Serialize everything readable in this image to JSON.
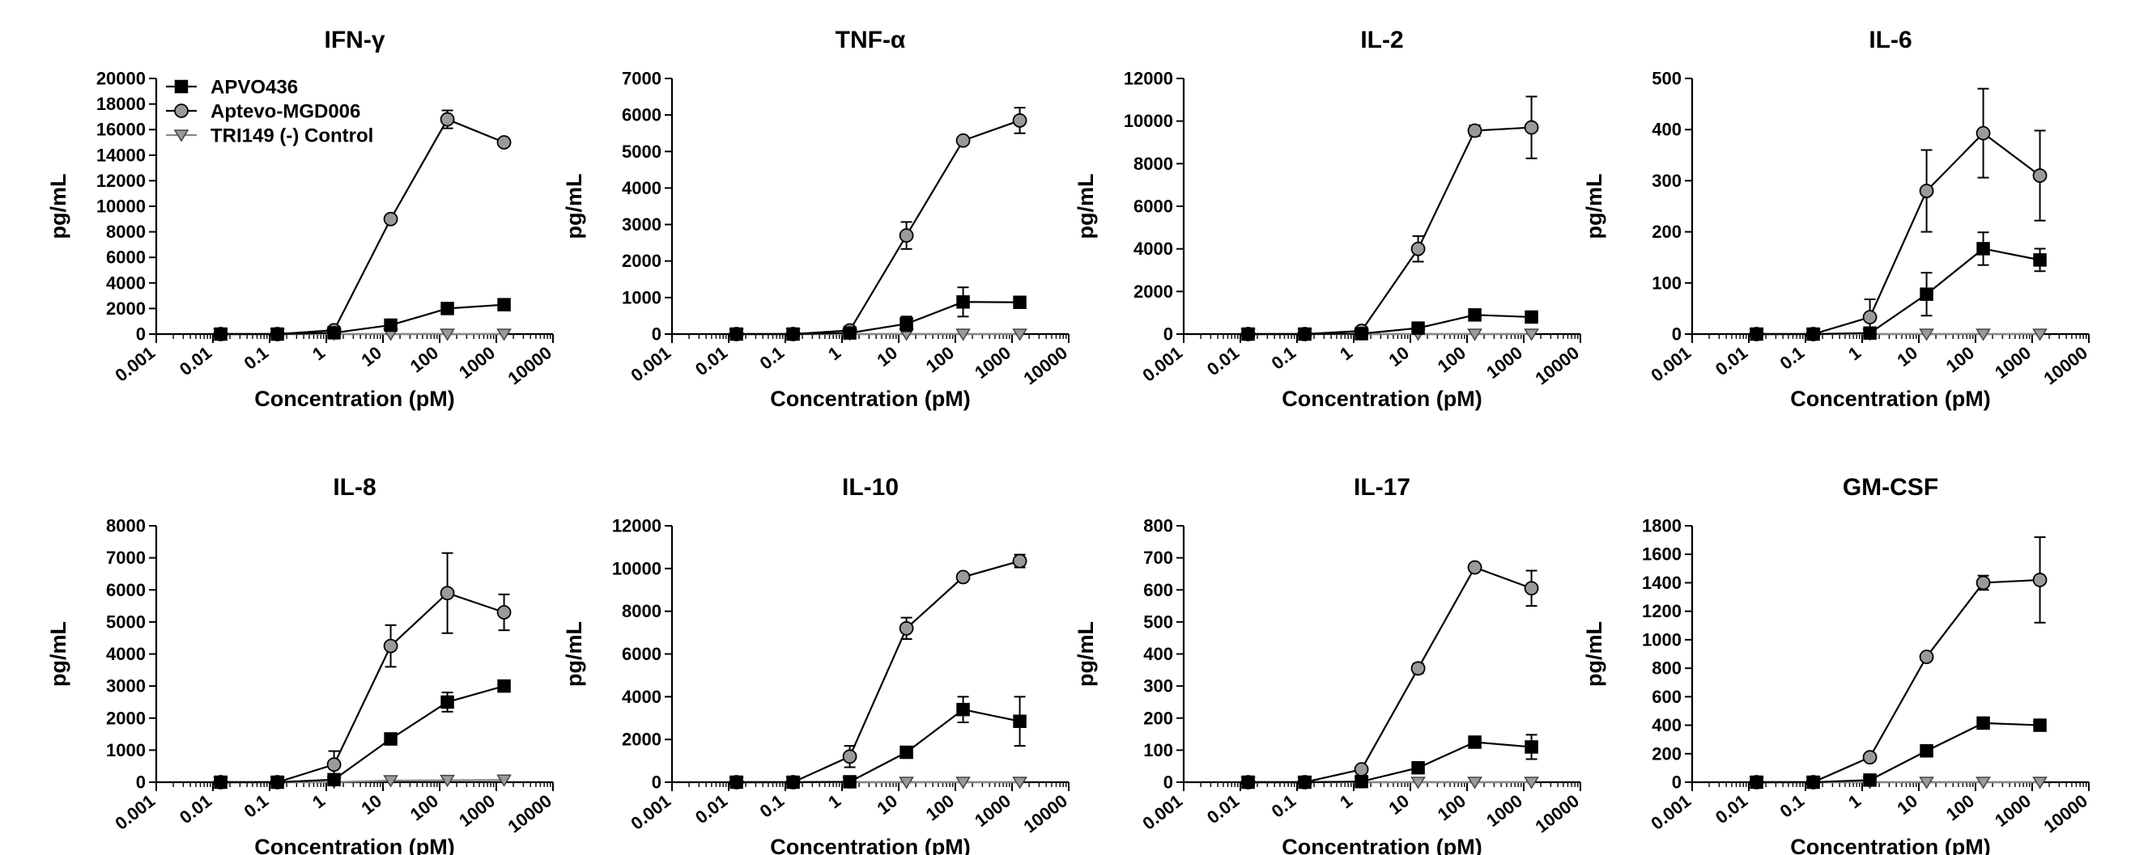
{
  "figure": {
    "legend_placement": "top-left of first panel"
  },
  "chart_data": [
    {
      "type": "line",
      "title": "IFN-γ",
      "xlabel": "Concentration (pM)",
      "ylabel": "pg/mL",
      "x_scale": "log",
      "xlim": [
        0.001,
        10000
      ],
      "x_ticks": [
        "0.001",
        "0.01",
        "0.1",
        "1",
        "10",
        "100",
        "1000",
        "10000"
      ],
      "ylim": [
        0,
        20000
      ],
      "y_ticks": [
        0,
        2000,
        4000,
        6000,
        8000,
        10000,
        12000,
        14000,
        16000,
        18000,
        20000
      ],
      "series": [
        {
          "name": "APVO436",
          "marker": "square",
          "color": "#000000",
          "x": [
            0.0137,
            0.137,
            1.37,
            13.7,
            137,
            1370
          ],
          "y": [
            0,
            0,
            100,
            700,
            2000,
            2300
          ],
          "err": [
            0,
            0,
            0,
            100,
            150,
            120
          ]
        },
        {
          "name": "Aptevo-MGD006",
          "marker": "circle",
          "color": "#9a9a9a",
          "x": [
            0.0137,
            0.137,
            1.37,
            13.7,
            137,
            1370
          ],
          "y": [
            0,
            0,
            300,
            9000,
            16800,
            15000
          ],
          "err": [
            0,
            0,
            0,
            0,
            700,
            0
          ]
        },
        {
          "name": "TRI149 (-) Control",
          "marker": "triangle-down",
          "color": "#9a9a9a",
          "x": [
            0.0137,
            0.137,
            1.37,
            13.7,
            137,
            1370
          ],
          "y": [
            0,
            0,
            0,
            0,
            0,
            0
          ],
          "err": [
            0,
            0,
            0,
            0,
            0,
            0
          ]
        }
      ]
    },
    {
      "type": "line",
      "title": "TNF-α",
      "xlabel": "Concentration (pM)",
      "ylabel": "pg/mL",
      "x_scale": "log",
      "xlim": [
        0.001,
        10000
      ],
      "x_ticks": [
        "0.001",
        "0.01",
        "0.1",
        "1",
        "10",
        "100",
        "1000",
        "10000"
      ],
      "ylim": [
        0,
        7000
      ],
      "y_ticks": [
        0,
        1000,
        2000,
        3000,
        4000,
        5000,
        6000,
        7000
      ],
      "series": [
        {
          "name": "APVO436",
          "marker": "square",
          "color": "#000000",
          "x": [
            0.0137,
            0.137,
            1.37,
            13.7,
            137,
            1370
          ],
          "y": [
            0,
            0,
            30,
            280,
            880,
            870
          ],
          "err": [
            0,
            0,
            0,
            200,
            400,
            0
          ]
        },
        {
          "name": "Aptevo-MGD006",
          "marker": "circle",
          "color": "#9a9a9a",
          "x": [
            0.0137,
            0.137,
            1.37,
            13.7,
            137,
            1370
          ],
          "y": [
            0,
            0,
            100,
            2700,
            5300,
            5850
          ],
          "err": [
            0,
            0,
            0,
            370,
            0,
            350
          ]
        },
        {
          "name": "TRI149 (-) Control",
          "marker": "triangle-down",
          "color": "#9a9a9a",
          "x": [
            0.0137,
            0.137,
            1.37,
            13.7,
            137,
            1370
          ],
          "y": [
            0,
            0,
            0,
            0,
            0,
            0
          ],
          "err": [
            0,
            0,
            0,
            0,
            0,
            0
          ]
        }
      ]
    },
    {
      "type": "line",
      "title": "IL-2",
      "xlabel": "Concentration (pM)",
      "ylabel": "pg/mL",
      "x_scale": "log",
      "xlim": [
        0.001,
        10000
      ],
      "x_ticks": [
        "0.001",
        "0.01",
        "0.1",
        "1",
        "10",
        "100",
        "1000",
        "10000"
      ],
      "ylim": [
        0,
        12000
      ],
      "y_ticks": [
        0,
        2000,
        4000,
        6000,
        8000,
        10000,
        12000
      ],
      "series": [
        {
          "name": "APVO436",
          "marker": "square",
          "color": "#000000",
          "x": [
            0.0137,
            0.137,
            1.37,
            13.7,
            137,
            1370
          ],
          "y": [
            0,
            0,
            20,
            280,
            900,
            800
          ],
          "err": [
            0,
            0,
            0,
            0,
            0,
            0
          ]
        },
        {
          "name": "Aptevo-MGD006",
          "marker": "circle",
          "color": "#9a9a9a",
          "x": [
            0.0137,
            0.137,
            1.37,
            13.7,
            137,
            1370
          ],
          "y": [
            0,
            0,
            150,
            4000,
            9550,
            9700
          ],
          "err": [
            0,
            0,
            0,
            600,
            250,
            1450
          ]
        },
        {
          "name": "TRI149 (-) Control",
          "marker": "triangle-down",
          "color": "#9a9a9a",
          "x": [
            0.0137,
            0.137,
            1.37,
            13.7,
            137,
            1370
          ],
          "y": [
            0,
            0,
            0,
            0,
            0,
            0
          ],
          "err": [
            0,
            0,
            0,
            0,
            0,
            0
          ]
        }
      ]
    },
    {
      "type": "line",
      "title": "IL-6",
      "xlabel": "Concentration (pM)",
      "ylabel": "pg/mL",
      "x_scale": "log",
      "xlim": [
        0.001,
        10000
      ],
      "x_ticks": [
        "0.001",
        "0.01",
        "0.1",
        "1",
        "10",
        "100",
        "1000",
        "10000"
      ],
      "ylim": [
        0,
        500
      ],
      "y_ticks": [
        0,
        100,
        200,
        300,
        400,
        500
      ],
      "series": [
        {
          "name": "APVO436",
          "marker": "square",
          "color": "#000000",
          "x": [
            0.0137,
            0.137,
            1.37,
            13.7,
            137,
            1370
          ],
          "y": [
            0,
            0,
            2,
            78,
            167,
            145
          ],
          "err": [
            0,
            0,
            0,
            42,
            32,
            22
          ]
        },
        {
          "name": "Aptevo-MGD006",
          "marker": "circle",
          "color": "#9a9a9a",
          "x": [
            0.0137,
            0.137,
            1.37,
            13.7,
            137,
            1370
          ],
          "y": [
            0,
            0,
            33,
            280,
            393,
            310
          ],
          "err": [
            0,
            0,
            35,
            80,
            87,
            88
          ]
        },
        {
          "name": "TRI149 (-) Control",
          "marker": "triangle-down",
          "color": "#9a9a9a",
          "x": [
            0.0137,
            0.137,
            1.37,
            13.7,
            137,
            1370
          ],
          "y": [
            0,
            0,
            0,
            0,
            0,
            0
          ],
          "err": [
            0,
            0,
            0,
            0,
            0,
            0
          ]
        }
      ]
    },
    {
      "type": "line",
      "title": "IL-8",
      "xlabel": "Concentration (pM)",
      "ylabel": "pg/mL",
      "x_scale": "log",
      "xlim": [
        0.001,
        10000
      ],
      "x_ticks": [
        "0.001",
        "0.01",
        "0.1",
        "1",
        "10",
        "100",
        "1000",
        "10000"
      ],
      "ylim": [
        0,
        8000
      ],
      "y_ticks": [
        0,
        1000,
        2000,
        3000,
        4000,
        5000,
        6000,
        7000,
        8000
      ],
      "series": [
        {
          "name": "APVO436",
          "marker": "square",
          "color": "#000000",
          "x": [
            0.0137,
            0.137,
            1.37,
            13.7,
            137,
            1370
          ],
          "y": [
            0,
            0,
            80,
            1350,
            2500,
            3000
          ],
          "err": [
            0,
            0,
            0,
            180,
            300,
            0
          ]
        },
        {
          "name": "Aptevo-MGD006",
          "marker": "circle",
          "color": "#9a9a9a",
          "x": [
            0.0137,
            0.137,
            1.37,
            13.7,
            137,
            1370
          ],
          "y": [
            0,
            0,
            550,
            4250,
            5900,
            5300
          ],
          "err": [
            0,
            0,
            420,
            650,
            1250,
            560
          ]
        },
        {
          "name": "TRI149 (-) Control",
          "marker": "triangle-down",
          "color": "#9a9a9a",
          "x": [
            0.0137,
            0.137,
            1.37,
            13.7,
            137,
            1370
          ],
          "y": [
            0,
            0,
            0,
            50,
            60,
            70
          ],
          "err": [
            0,
            0,
            0,
            0,
            0,
            0
          ]
        }
      ]
    },
    {
      "type": "line",
      "title": "IL-10",
      "xlabel": "Concentration (pM)",
      "ylabel": "pg/mL",
      "x_scale": "log",
      "xlim": [
        0.001,
        10000
      ],
      "x_ticks": [
        "0.001",
        "0.01",
        "0.1",
        "1",
        "10",
        "100",
        "1000",
        "10000"
      ],
      "ylim": [
        0,
        12000
      ],
      "y_ticks": [
        0,
        2000,
        4000,
        6000,
        8000,
        10000,
        12000
      ],
      "series": [
        {
          "name": "APVO436",
          "marker": "square",
          "color": "#000000",
          "x": [
            0.0137,
            0.137,
            1.37,
            13.7,
            137,
            1370
          ],
          "y": [
            0,
            0,
            20,
            1400,
            3400,
            2850
          ],
          "err": [
            0,
            0,
            0,
            0,
            600,
            1150
          ]
        },
        {
          "name": "Aptevo-MGD006",
          "marker": "circle",
          "color": "#9a9a9a",
          "x": [
            0.0137,
            0.137,
            1.37,
            13.7,
            137,
            1370
          ],
          "y": [
            0,
            0,
            1200,
            7200,
            9600,
            10350
          ],
          "err": [
            0,
            0,
            500,
            500,
            0,
            300
          ]
        },
        {
          "name": "TRI149 (-) Control",
          "marker": "triangle-down",
          "color": "#9a9a9a",
          "x": [
            0.0137,
            0.137,
            1.37,
            13.7,
            137,
            1370
          ],
          "y": [
            0,
            0,
            0,
            0,
            0,
            0
          ],
          "err": [
            0,
            0,
            0,
            0,
            0,
            0
          ]
        }
      ]
    },
    {
      "type": "line",
      "title": "IL-17",
      "xlabel": "Concentration (pM)",
      "ylabel": "pg/mL",
      "x_scale": "log",
      "xlim": [
        0.001,
        10000
      ],
      "x_ticks": [
        "0.001",
        "0.01",
        "0.1",
        "1",
        "10",
        "100",
        "1000",
        "10000"
      ],
      "ylim": [
        0,
        800
      ],
      "y_ticks": [
        0,
        100,
        200,
        300,
        400,
        500,
        600,
        700,
        800
      ],
      "series": [
        {
          "name": "APVO436",
          "marker": "square",
          "color": "#000000",
          "x": [
            0.0137,
            0.137,
            1.37,
            13.7,
            137,
            1370
          ],
          "y": [
            0,
            0,
            2,
            45,
            125,
            110
          ],
          "err": [
            0,
            0,
            0,
            0,
            0,
            38
          ]
        },
        {
          "name": "Aptevo-MGD006",
          "marker": "circle",
          "color": "#9a9a9a",
          "x": [
            0.0137,
            0.137,
            1.37,
            13.7,
            137,
            1370
          ],
          "y": [
            0,
            0,
            40,
            355,
            670,
            605
          ],
          "err": [
            0,
            0,
            0,
            15,
            0,
            55
          ]
        },
        {
          "name": "TRI149 (-) Control",
          "marker": "triangle-down",
          "color": "#9a9a9a",
          "x": [
            0.0137,
            0.137,
            1.37,
            13.7,
            137,
            1370
          ],
          "y": [
            0,
            0,
            0,
            0,
            0,
            0
          ],
          "err": [
            0,
            0,
            0,
            0,
            0,
            0
          ]
        }
      ]
    },
    {
      "type": "line",
      "title": "GM-CSF",
      "xlabel": "Concentration (pM)",
      "ylabel": "pg/mL",
      "x_scale": "log",
      "xlim": [
        0.001,
        10000
      ],
      "x_ticks": [
        "0.001",
        "0.01",
        "0.1",
        "1",
        "10",
        "100",
        "1000",
        "10000"
      ],
      "ylim": [
        0,
        1800
      ],
      "y_ticks": [
        0,
        200,
        400,
        600,
        800,
        1000,
        1200,
        1400,
        1600,
        1800
      ],
      "series": [
        {
          "name": "APVO436",
          "marker": "square",
          "color": "#000000",
          "x": [
            0.0137,
            0.137,
            1.37,
            13.7,
            137,
            1370
          ],
          "y": [
            0,
            0,
            15,
            220,
            415,
            400
          ],
          "err": [
            0,
            0,
            0,
            0,
            40,
            0
          ]
        },
        {
          "name": "Aptevo-MGD006",
          "marker": "circle",
          "color": "#9a9a9a",
          "x": [
            0.0137,
            0.137,
            1.37,
            13.7,
            137,
            1370
          ],
          "y": [
            0,
            0,
            175,
            880,
            1400,
            1420
          ],
          "err": [
            0,
            0,
            0,
            0,
            50,
            300
          ]
        },
        {
          "name": "TRI149 (-) Control",
          "marker": "triangle-down",
          "color": "#9a9a9a",
          "x": [
            0.0137,
            0.137,
            1.37,
            13.7,
            137,
            1370
          ],
          "y": [
            0,
            0,
            0,
            0,
            0,
            0
          ],
          "err": [
            0,
            0,
            0,
            0,
            0,
            0
          ]
        }
      ]
    }
  ]
}
